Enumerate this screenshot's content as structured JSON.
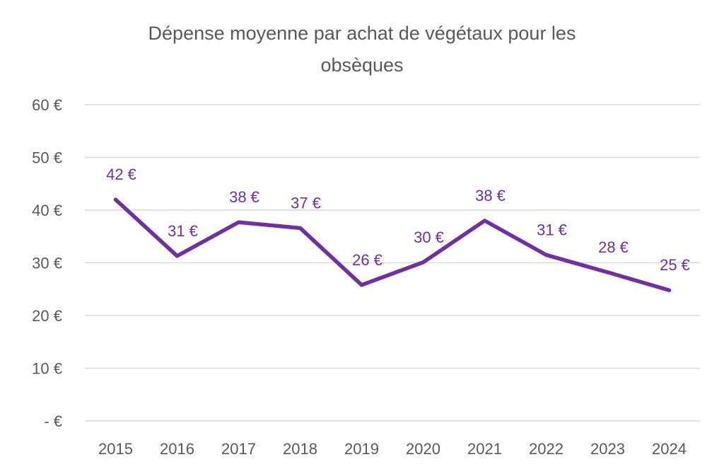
{
  "chart_data": {
    "type": "line",
    "title": [
      "Dépense moyenne par achat de végétaux pour les",
      "obsèques"
    ],
    "categories": [
      "2015",
      "2016",
      "2017",
      "2018",
      "2019",
      "2020",
      "2021",
      "2022",
      "2023",
      "2024"
    ],
    "series": [
      {
        "values": [
          42.0,
          31.3,
          37.7,
          36.6,
          25.8,
          30.1,
          38.0,
          31.5,
          28.2,
          24.8
        ],
        "labels": [
          "42 €",
          "31 €",
          "38 €",
          "37 €",
          "26 €",
          "30 €",
          "38 €",
          "31 €",
          "28 €",
          "25 €"
        ],
        "color": "#7030A0"
      }
    ],
    "ylim": [
      0,
      60
    ],
    "yticks": [
      0,
      10,
      20,
      30,
      40,
      50,
      60
    ],
    "ytick_labels": [
      "-  €",
      "10 €",
      "20 €",
      "30 €",
      "40 €",
      "50 €",
      "60 €"
    ],
    "grid": true,
    "legend": "none",
    "xlabel": "",
    "ylabel": ""
  }
}
